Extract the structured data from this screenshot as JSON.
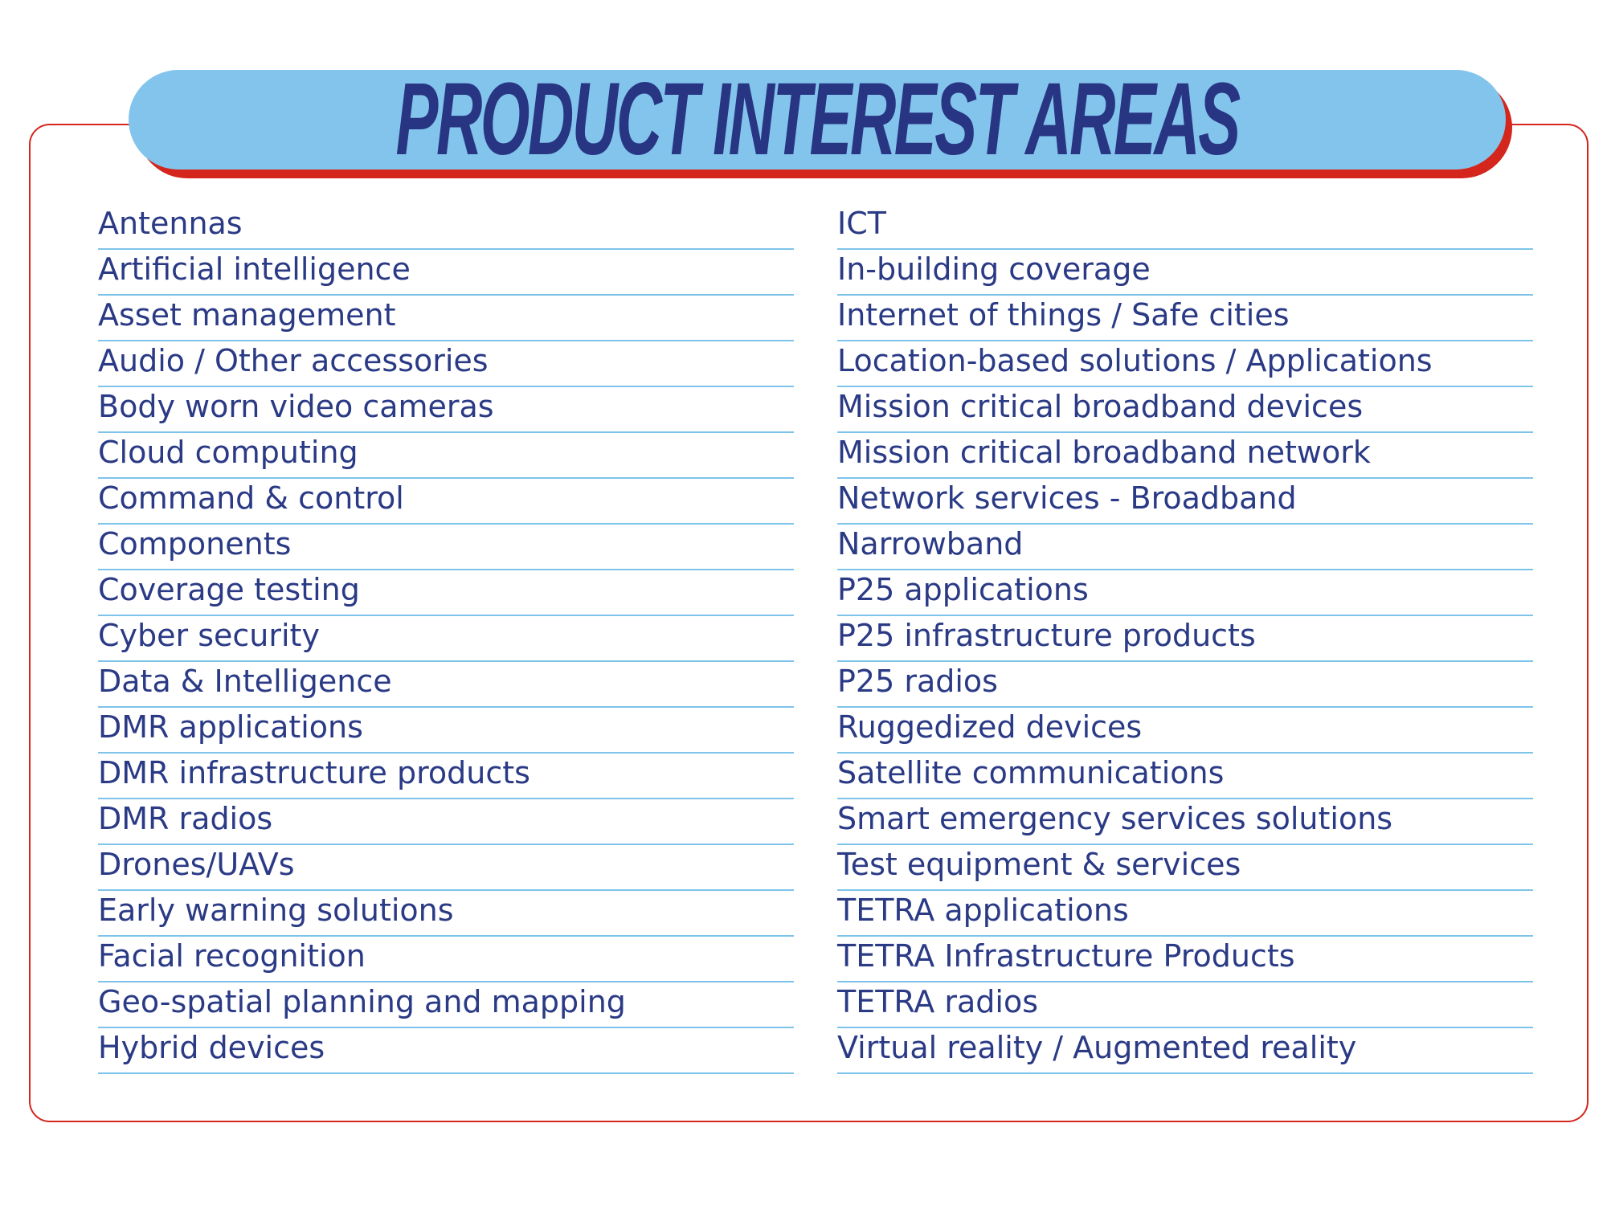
{
  "title": "PRODUCT INTEREST AREAS",
  "colors": {
    "text": "#2a3a85",
    "title": "#283583",
    "banner": "#83c4ec",
    "accent_red": "#d4261c",
    "rule": "#7ec4ea"
  },
  "left_column": [
    "Antennas",
    "Artificial intelligence",
    "Asset management",
    "Audio / Other accessories",
    "Body worn video cameras",
    "Cloud computing",
    "Command & control",
    "Components",
    "Coverage testing",
    "Cyber security",
    "Data & Intelligence",
    "DMR applications",
    "DMR infrastructure products",
    "DMR radios",
    "Drones/UAVs",
    "Early warning solutions",
    "Facial recognition",
    "Geo-spatial planning and mapping",
    "Hybrid devices"
  ],
  "right_column": [
    "ICT",
    "In-building coverage",
    "Internet of things / Safe cities",
    "Location-based solutions / Applications",
    "Mission critical broadband devices",
    "Mission critical broadband network",
    "Network services - Broadband",
    "Narrowband",
    "P25 applications",
    "P25 infrastructure products",
    "P25 radios",
    "Ruggedized devices",
    "Satellite communications",
    "Smart emergency services solutions",
    "Test equipment & services",
    "TETRA applications",
    "TETRA Infrastructure Products",
    "TETRA radios",
    "Virtual reality / Augmented reality"
  ]
}
